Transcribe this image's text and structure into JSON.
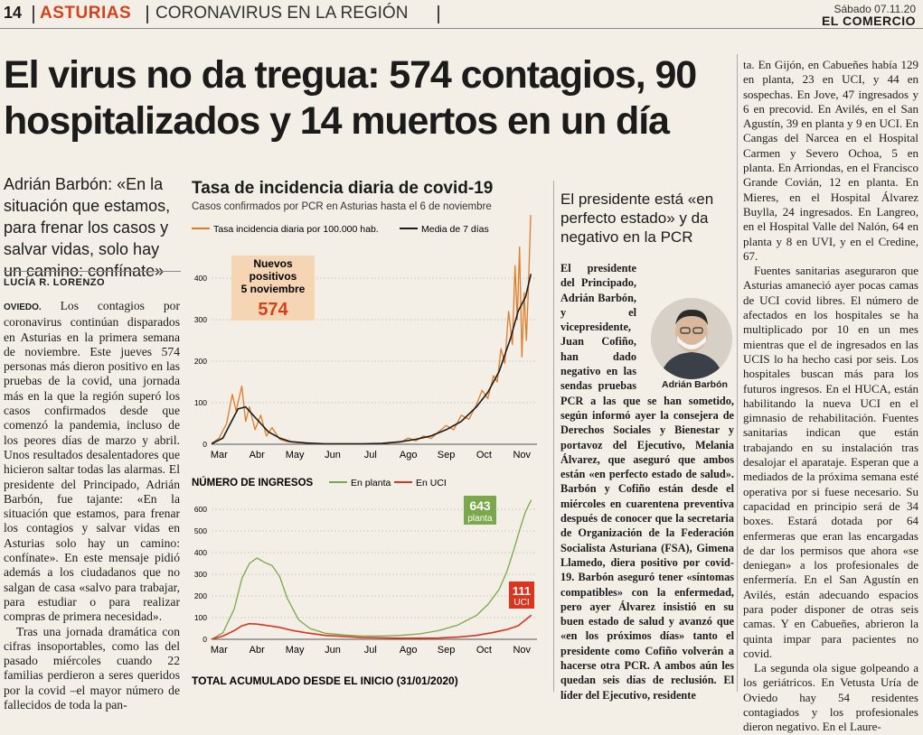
{
  "header": {
    "page_number": "14",
    "section": "ASTURIAS",
    "subsection": "CORONAVIRUS EN LA REGIÓN",
    "date": "Sábado 07.11.20",
    "newspaper": "EL COMERCIO"
  },
  "headline": "El virus no da tregua: 574 contagios, 90 hospitalizados y 14 muertos en un día",
  "deck": "Adrián Barbón: «En la situación que estamos, para frenar los casos y salvar vidas, solo hay un camino: confínate»",
  "byline": "LUCÍA R. LORENZO",
  "body_col1": {
    "lead": "OVIEDO.",
    "paragraphs": [
      "Los contagios por coronavirus continúan disparados en Asturias en la primera semana de noviembre. Este jueves 574 personas más dieron positivo en las pruebas de la covid, una jornada más en la que la región superó los casos confirmados desde que comenzó la pandemia, incluso de los peores días de marzo y abril. Unos resultados desalentadores que hicieron saltar todas las alarmas. El presidente del Principado, Adrián Barbón, fue tajante: «En la situación que estamos, para frenar los contagios y salvar vidas en Asturias solo hay un camino: confínate». En este mensaje pidió además a los ciudadanos que no salgan de casa «salvo para trabajar, para estudiar o para realizar compras de primera necesidad».",
      "Tras una jornada dramática con cifras insoportables, como las del pasado miércoles cuando 22 familias perdieron a seres queridos por la covid –el mayor número de fallecidos de toda la pan-"
    ]
  },
  "chart1": {
    "title": "Tasa de incidencia diaria de covid-19",
    "subtitle": "Casos confirmados por PCR en Asturias hasta el 6 de noviembre",
    "legend": [
      "Tasa incidencia diaria por 100.000 hab.",
      "Media de 7 días"
    ],
    "callout_title": "Nuevos positivos 5 noviembre",
    "callout_value": "574"
  },
  "chart2": {
    "title": "NÚMERO DE INGRESOS",
    "legend": [
      "En planta",
      "En UCI"
    ],
    "label_planta_value": "643",
    "label_planta_text": "planta",
    "label_uci_value": "111",
    "label_uci_text": "UCI"
  },
  "chart3": {
    "title": "TOTAL ACUMULADO DESDE EL INICIO (31/01/2020)"
  },
  "chart_data": [
    {
      "type": "line",
      "title": "Tasa de incidencia diaria de covid-19",
      "subtitle": "Casos confirmados por PCR en Asturias hasta el 6 de noviembre",
      "x_ticks": [
        "Mar",
        "Abr",
        "May",
        "Jun",
        "Jul",
        "Ago",
        "Sep",
        "Oct",
        "Nov"
      ],
      "ylim": [
        0,
        400
      ],
      "y_ticks": [
        0,
        100,
        200,
        300,
        400
      ],
      "series": [
        {
          "name": "Tasa incidencia diaria por 100.000 hab.",
          "color": "#e07b2a",
          "x": [
            0,
            0.2,
            0.4,
            0.55,
            0.65,
            0.8,
            0.9,
            1.0,
            1.15,
            1.3,
            1.45,
            1.6,
            1.8,
            2.0,
            2.3,
            2.6,
            3.0,
            3.5,
            4.0,
            4.5,
            5.0,
            5.2,
            5.4,
            5.6,
            5.8,
            6.0,
            6.2,
            6.4,
            6.6,
            6.8,
            7.0,
            7.15,
            7.3,
            7.45,
            7.55,
            7.65,
            7.75,
            7.85,
            7.95,
            8.02,
            8.08,
            8.14,
            8.2,
            8.26,
            8.32,
            8.38,
            8.44
          ],
          "y": [
            2,
            15,
            50,
            120,
            80,
            140,
            55,
            90,
            35,
            70,
            20,
            40,
            12,
            6,
            4,
            2,
            1,
            1,
            1,
            2,
            5,
            15,
            8,
            20,
            14,
            30,
            45,
            35,
            70,
            60,
            95,
            130,
            110,
            165,
            150,
            230,
            195,
            320,
            240,
            430,
            300,
            475,
            210,
            365,
            250,
            395,
            568
          ]
        },
        {
          "name": "Media de 7 días",
          "color": "#1b1b1b",
          "x": [
            0,
            0.3,
            0.5,
            0.7,
            0.9,
            1.1,
            1.3,
            1.5,
            1.8,
            2.1,
            2.5,
            3.0,
            3.5,
            4.0,
            4.5,
            5.0,
            5.4,
            5.8,
            6.2,
            6.6,
            7.0,
            7.3,
            7.6,
            7.9,
            8.1,
            8.3,
            8.44
          ],
          "y": [
            1,
            15,
            50,
            85,
            90,
            70,
            50,
            30,
            15,
            6,
            3,
            1,
            1,
            1,
            2,
            6,
            12,
            20,
            35,
            55,
            90,
            125,
            175,
            255,
            320,
            355,
            410
          ]
        }
      ]
    },
    {
      "type": "line",
      "title": "NÚMERO DE INGRESOS",
      "x_ticks": [
        "Mar",
        "Abr",
        "May",
        "Jun",
        "Jul",
        "Ago",
        "Sep",
        "Oct",
        "Nov"
      ],
      "ylim": [
        0,
        600
      ],
      "y_ticks": [
        0,
        100,
        200,
        300,
        400,
        500,
        600
      ],
      "series": [
        {
          "name": "En planta",
          "color": "#7aa84a",
          "x": [
            0,
            0.3,
            0.6,
            0.8,
            1.0,
            1.2,
            1.4,
            1.6,
            1.8,
            2.0,
            2.3,
            2.6,
            3.0,
            3.5,
            4.0,
            4.5,
            5.0,
            5.5,
            6.0,
            6.5,
            7.0,
            7.3,
            7.6,
            7.8,
            8.0,
            8.15,
            8.3,
            8.45
          ],
          "y": [
            0,
            30,
            140,
            280,
            350,
            375,
            355,
            340,
            290,
            190,
            90,
            50,
            28,
            20,
            15,
            15,
            18,
            25,
            40,
            65,
            110,
            160,
            230,
            310,
            420,
            510,
            590,
            643
          ]
        },
        {
          "name": "En UCI",
          "color": "#d9351f",
          "x": [
            0,
            0.3,
            0.6,
            0.8,
            1.0,
            1.2,
            1.5,
            1.8,
            2.1,
            2.5,
            3.0,
            4.0,
            5.0,
            6.0,
            6.5,
            7.0,
            7.4,
            7.8,
            8.1,
            8.3,
            8.45
          ],
          "y": [
            0,
            15,
            40,
            62,
            72,
            70,
            63,
            55,
            42,
            30,
            18,
            8,
            5,
            6,
            10,
            18,
            30,
            45,
            62,
            90,
            111
          ]
        }
      ]
    }
  ],
  "subarticle": {
    "headline": "El presidente está «en perfecto estado» y da negativo en la PCR",
    "body": "El presidente del Principado, Adrián Barbón, y el vicepresidente, Juan Cofiño, han dado negativo en las sendas pruebas PCR a las que se han sometido, según informó ayer la consejera de Derechos Sociales y Bienestar y portavoz del Ejecutivo, Melania Álvarez, que aseguró que ambos están «en perfecto estado de salud». Barbón y Cofiño están desde el miércoles en cuarentena preventiva después de conocer que la secretaria de Organización de la Federación Socialista Asturiana (FSA), Gimena Llamedo, diera positivo por covid-19. Barbón aseguró tener «síntomas compatibles» con la enfermedad, pero ayer Álvarez insistió en su buen estado de salud y avanzó que «en los próximos días» tanto el presidente como Cofiño volverán a hacerse otra PCR. A ambos aún les quedan seis días de reclusión. El líder del Ejecutivo, residente",
    "photo_caption": "Adrián Barbón"
  },
  "body_col4": {
    "paragraphs": [
      "ta. En Gijón, en Cabueñes había 129 en planta, 23 en UCI, y 44 en sospechas. En Jove, 47 ingresados y 6 en precovid. En Avilés, en el San Agustín, 39 en planta y 9 en UCI. En Cangas del Narcea en el Hospital Carmen y Severo Ochoa, 5 en planta. En Arriondas, en el Francisco Grande Covián, 12 en planta. En Mieres, en el Hospital Álvarez Buylla, 24 ingresados. En Langreo, en el Hospital Valle del Nalón, 64 en planta y 8 en UVI, y en el Credine, 67.",
      "Fuentes sanitarias aseguraron que Asturias amaneció ayer pocas camas de UCI covid libres. El número de afectados en los hospitales se ha multiplicado por 10 en un mes mientras que el de ingresados en las UCIS lo ha hecho casi por seis. Los hospitales buscan más para los futuros ingresos. En el HUCA, están habilitando la nueva UCI en el gimnasio de rehabilitación. Fuentes sanitarias indican que están trabajando en su instalación tras desalojar el aparataje. Esperan que a mediados de la próxima semana esté operativa por si fuese necesario. Su capacidad en principio será de 34 boxes. Estará dotada por 64 enfermeras que eran las encargadas de dar los permisos que ahora «se deniegan» a los profesionales de enfermería. En el San Agustín en Avilés, están adecuando espacios para poder disponer de otras seis camas. Y en Cabueñes, abrieron la quinta impar para pacientes no covid.",
      "La segunda ola sigue golpeando a los geriátricos. En Vetusta Uría de Oviedo hay 54 residentes contagiados y los profesionales dieron negativo. En el Laure-"
    ]
  }
}
